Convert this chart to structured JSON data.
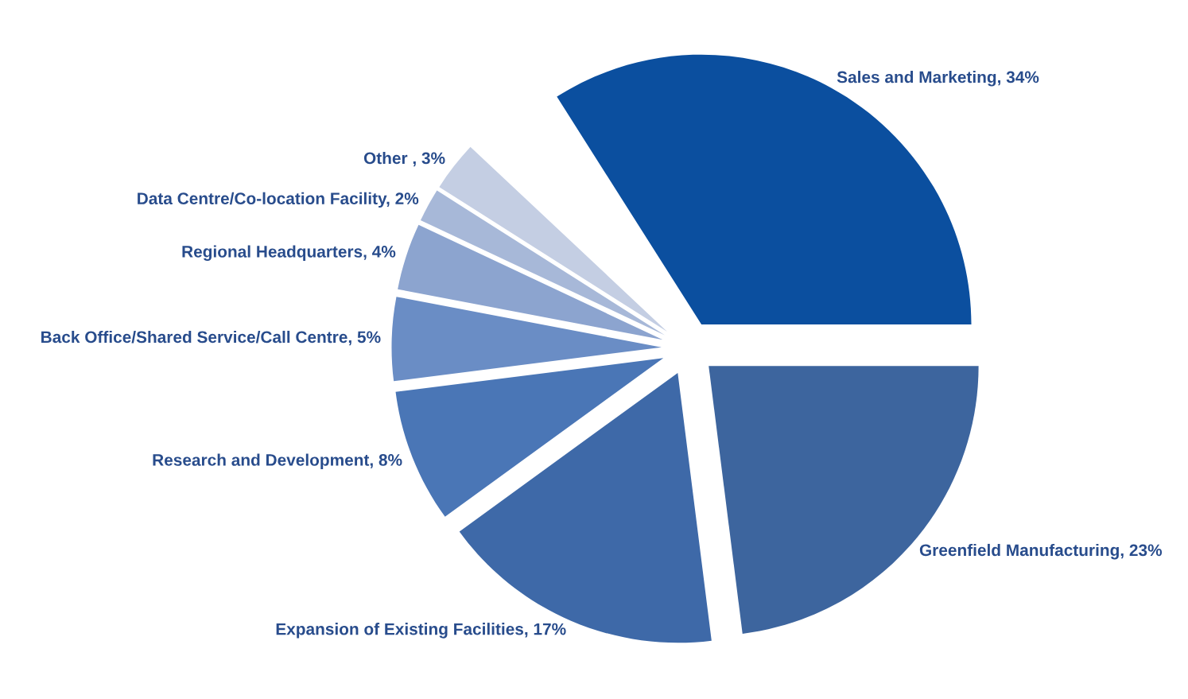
{
  "chart_data": {
    "type": "pie",
    "categories": [
      "Sales and Marketing",
      "Greenfield Manufacturing",
      "Expansion of Existing Facilities",
      "Research and Development",
      "Back Office/Shared Service/Call Centre",
      "Regional Headquarters",
      "Data Centre/Co-location Facility",
      "Other "
    ],
    "values": [
      34,
      23,
      17,
      8,
      5,
      4,
      2,
      3
    ],
    "value_labels": [
      "34%",
      "23%",
      "17%",
      "8%",
      "5%",
      "4%",
      "2%",
      "3%"
    ],
    "colors": [
      "#0b4f9f",
      "#3d659e",
      "#3e69a8",
      "#4a76b6",
      "#6a8dc5",
      "#8ca4cf",
      "#a7b8d8",
      "#c4cee3"
    ],
    "legend": false
  }
}
